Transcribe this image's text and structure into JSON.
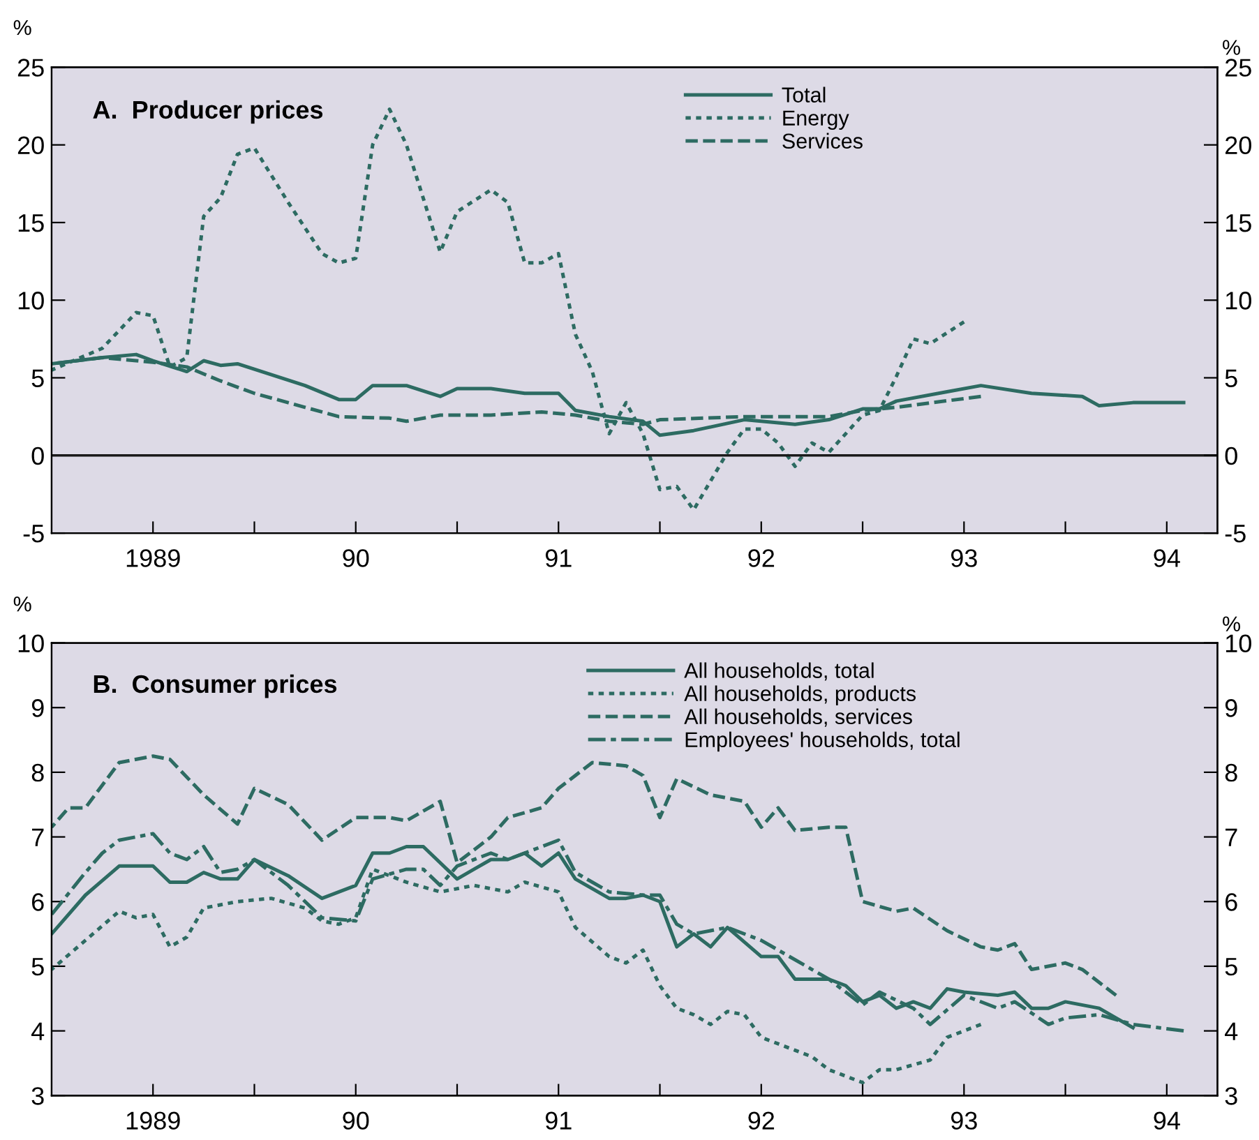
{
  "chart_data": [
    {
      "type": "line",
      "title": "A.  Producer prices",
      "ylabel": "%",
      "y2label": "%",
      "xlim": [
        "1989-01",
        "1994-10"
      ],
      "xticks": [
        {
          "value": "1989-07",
          "label": "1989"
        },
        {
          "value": "1990-01",
          "label": null
        },
        {
          "value": "1990-07",
          "label": "90"
        },
        {
          "value": "1991-01",
          "label": null
        },
        {
          "value": "1991-07",
          "label": "91"
        },
        {
          "value": "1992-01",
          "label": null
        },
        {
          "value": "1992-07",
          "label": "92"
        },
        {
          "value": "1993-01",
          "label": null
        },
        {
          "value": "1993-07",
          "label": "93"
        },
        {
          "value": "1994-01",
          "label": null
        },
        {
          "value": "1994-07",
          "label": "94"
        }
      ],
      "ylim": [
        -5,
        25
      ],
      "yticks": [
        -5,
        0,
        5,
        10,
        15,
        20,
        25
      ],
      "y2lim": [
        -5,
        25
      ],
      "y2ticks": [
        -5,
        0,
        5,
        10,
        15,
        20,
        25
      ],
      "grid": false,
      "legend": "top",
      "marker": "none",
      "ref_lines": [
        {
          "axis": "y",
          "value": 0,
          "color": "#1a1a1a",
          "line_style": "solid"
        }
      ],
      "series": [
        {
          "name": "Total",
          "color": "#2d6b62",
          "line_style": "solid",
          "x": [
            "1989-01",
            "1989-04",
            "1989-06",
            "1989-07",
            "1989-09",
            "1989-10",
            "1989-11",
            "1989-12",
            "1990-04",
            "1990-06",
            "1990-07",
            "1990-08",
            "1990-10",
            "1990-12",
            "1991-01",
            "1991-03",
            "1991-05",
            "1991-07",
            "1991-08",
            "1991-10",
            "1991-12",
            "1992-01",
            "1992-03",
            "1992-06",
            "1992-09",
            "1992-11",
            "1993-01",
            "1993-02",
            "1993-03",
            "1993-06",
            "1993-08",
            "1993-11",
            "1994-02",
            "1994-03",
            "1994-05",
            "1994-08"
          ],
          "values": [
            5.9,
            6.3,
            6.5,
            6.1,
            5.4,
            6.1,
            5.8,
            5.9,
            4.5,
            3.6,
            3.6,
            4.5,
            4.5,
            3.8,
            4.3,
            4.3,
            4.0,
            4.0,
            2.9,
            2.5,
            2.2,
            1.3,
            1.6,
            2.3,
            2.0,
            2.3,
            3.0,
            3.0,
            3.5,
            4.1,
            4.5,
            4.0,
            3.8,
            3.2,
            3.4,
            3.4
          ]
        },
        {
          "name": "Energy",
          "color": "#2d6b62",
          "line_style": "dotted",
          "x": [
            "1989-01",
            "1989-04",
            "1989-06",
            "1989-07",
            "1989-08",
            "1989-09",
            "1989-10",
            "1989-11",
            "1989-12",
            "1990-01",
            "1990-03",
            "1990-05",
            "1990-06",
            "1990-07",
            "1990-08",
            "1990-09",
            "1990-10",
            "1990-12",
            "1991-01",
            "1991-03",
            "1991-04",
            "1991-05",
            "1991-06",
            "1991-07",
            "1991-08",
            "1991-09",
            "1991-10",
            "1991-11",
            "1991-12",
            "1992-01",
            "1992-02",
            "1992-03",
            "1992-05",
            "1992-06",
            "1992-07",
            "1992-08",
            "1992-09",
            "1992-10",
            "1992-11",
            "1993-01",
            "1993-02",
            "1993-03",
            "1993-04",
            "1993-05",
            "1993-07"
          ],
          "values": [
            5.5,
            6.9,
            9.2,
            9.0,
            5.7,
            6.3,
            15.4,
            16.6,
            19.4,
            19.8,
            16.3,
            13.0,
            12.4,
            12.7,
            20.0,
            22.3,
            20.0,
            13.1,
            15.7,
            17.1,
            16.3,
            12.4,
            12.4,
            13.0,
            7.8,
            5.4,
            1.4,
            3.4,
            1.4,
            -2.2,
            -2.0,
            -3.5,
            0.2,
            1.7,
            1.7,
            0.8,
            -0.7,
            0.8,
            0.2,
            2.6,
            2.9,
            5.1,
            7.5,
            7.2,
            8.6
          ]
        },
        {
          "name": "Services",
          "color": "#2d6b62",
          "line_style": "dashed",
          "x": [
            "1989-01",
            "1989-04",
            "1989-06",
            "1989-07",
            "1989-09",
            "1989-11",
            "1990-01",
            "1990-04",
            "1990-06",
            "1990-09",
            "1990-10",
            "1990-12",
            "1991-03",
            "1991-06",
            "1991-08",
            "1991-10",
            "1991-12",
            "1992-01",
            "1992-06",
            "1992-11",
            "1993-01",
            "1993-03",
            "1993-08"
          ],
          "values": [
            5.9,
            6.3,
            6.1,
            6.0,
            5.7,
            4.8,
            4.0,
            3.1,
            2.5,
            2.4,
            2.2,
            2.6,
            2.6,
            2.8,
            2.6,
            2.2,
            2.0,
            2.3,
            2.5,
            2.5,
            2.9,
            3.1,
            3.8
          ]
        }
      ]
    },
    {
      "type": "line",
      "title": "B.  Consumer prices",
      "ylabel": "%",
      "y2label": "%",
      "xlim": [
        "1989-01",
        "1994-10"
      ],
      "xticks": [
        {
          "value": "1989-07",
          "label": "1989"
        },
        {
          "value": "1990-01",
          "label": null
        },
        {
          "value": "1990-07",
          "label": "90"
        },
        {
          "value": "1991-01",
          "label": null
        },
        {
          "value": "1991-07",
          "label": "91"
        },
        {
          "value": "1992-01",
          "label": null
        },
        {
          "value": "1992-07",
          "label": "92"
        },
        {
          "value": "1993-01",
          "label": null
        },
        {
          "value": "1993-07",
          "label": "93"
        },
        {
          "value": "1994-01",
          "label": null
        },
        {
          "value": "1994-07",
          "label": "94"
        }
      ],
      "ylim": [
        3,
        10
      ],
      "yticks": [
        3,
        4,
        5,
        6,
        7,
        8,
        9,
        10
      ],
      "y2lim": [
        3,
        10
      ],
      "y2ticks": [
        3,
        4,
        5,
        6,
        7,
        8,
        9,
        10
      ],
      "grid": false,
      "legend": "top",
      "marker": "none",
      "series": [
        {
          "name": "All households, total",
          "color": "#2d6b62",
          "line_style": "solid",
          "x": [
            "1989-01",
            "1989-03",
            "1989-05",
            "1989-07",
            "1989-08",
            "1989-09",
            "1989-10",
            "1989-11",
            "1989-12",
            "1990-01",
            "1990-03",
            "1990-05",
            "1990-07",
            "1990-08",
            "1990-09",
            "1990-10",
            "1990-11",
            "1991-01",
            "1991-02",
            "1991-03",
            "1991-04",
            "1991-05",
            "1991-06",
            "1991-07",
            "1991-08",
            "1991-10",
            "1991-11",
            "1991-12",
            "1992-01",
            "1992-02",
            "1992-03",
            "1992-04",
            "1992-05",
            "1992-07",
            "1992-08",
            "1992-09",
            "1992-11",
            "1992-12",
            "1993-01",
            "1993-02",
            "1993-03",
            "1993-04",
            "1993-05",
            "1993-06",
            "1993-07",
            "1993-09",
            "1993-10",
            "1993-11",
            "1993-12",
            "1994-01",
            "1994-03",
            "1994-04",
            "1994-05"
          ],
          "values": [
            5.5,
            6.1,
            6.55,
            6.55,
            6.3,
            6.3,
            6.45,
            6.35,
            6.35,
            6.65,
            6.4,
            6.05,
            6.25,
            6.75,
            6.75,
            6.85,
            6.85,
            6.35,
            6.5,
            6.65,
            6.65,
            6.75,
            6.55,
            6.75,
            6.35,
            6.05,
            6.05,
            6.1,
            6.0,
            5.3,
            5.5,
            5.3,
            5.6,
            5.15,
            5.15,
            4.8,
            4.8,
            4.7,
            4.45,
            4.55,
            4.35,
            4.45,
            4.35,
            4.65,
            4.6,
            4.55,
            4.6,
            4.35,
            4.35,
            4.45,
            4.35,
            4.2,
            4.05
          ]
        },
        {
          "name": "All households, products",
          "color": "#2d6b62",
          "line_style": "dotted",
          "x": [
            "1989-01",
            "1989-03",
            "1989-05",
            "1989-06",
            "1989-07",
            "1989-08",
            "1989-09",
            "1989-10",
            "1989-12",
            "1990-02",
            "1990-04",
            "1990-05",
            "1990-06",
            "1990-07",
            "1990-08",
            "1990-10",
            "1990-12",
            "1991-02",
            "1991-04",
            "1991-05",
            "1991-07",
            "1991-08",
            "1991-10",
            "1991-11",
            "1991-12",
            "1992-01",
            "1992-02",
            "1992-03",
            "1992-04",
            "1992-05",
            "1992-06",
            "1992-07",
            "1992-09",
            "1992-10",
            "1992-11",
            "1993-01",
            "1993-02",
            "1993-03",
            "1993-05",
            "1993-06",
            "1993-08"
          ],
          "values": [
            4.95,
            5.4,
            5.85,
            5.75,
            5.8,
            5.3,
            5.45,
            5.9,
            6.0,
            6.05,
            5.9,
            5.7,
            5.65,
            5.75,
            6.5,
            6.3,
            6.15,
            6.25,
            6.15,
            6.3,
            6.15,
            5.6,
            5.15,
            5.05,
            5.25,
            4.7,
            4.35,
            4.25,
            4.1,
            4.3,
            4.25,
            3.9,
            3.7,
            3.6,
            3.4,
            3.2,
            3.4,
            3.4,
            3.55,
            3.9,
            4.1
          ]
        },
        {
          "name": "All households, services",
          "color": "#2d6b62",
          "line_style": "dashed",
          "x": [
            "1989-01",
            "1989-02",
            "1989-03",
            "1989-05",
            "1989-07",
            "1989-08",
            "1989-10",
            "1989-12",
            "1990-01",
            "1990-03",
            "1990-05",
            "1990-07",
            "1990-09",
            "1990-10",
            "1990-12",
            "1991-01",
            "1991-03",
            "1991-04",
            "1991-06",
            "1991-07",
            "1991-09",
            "1991-11",
            "1991-12",
            "1992-01",
            "1992-02",
            "1992-04",
            "1992-06",
            "1992-07",
            "1992-08",
            "1992-09",
            "1992-11",
            "1992-12",
            "1993-01",
            "1993-03",
            "1993-04",
            "1993-06",
            "1993-08",
            "1993-09",
            "1993-10",
            "1993-11",
            "1994-01",
            "1994-02",
            "1994-04"
          ],
          "values": [
            7.15,
            7.45,
            7.45,
            8.15,
            8.25,
            8.2,
            7.65,
            7.2,
            7.75,
            7.5,
            6.95,
            7.3,
            7.3,
            7.25,
            7.55,
            6.6,
            7.0,
            7.3,
            7.45,
            7.75,
            8.15,
            8.1,
            7.95,
            7.3,
            7.9,
            7.65,
            7.55,
            7.15,
            7.45,
            7.1,
            7.15,
            7.15,
            6.0,
            5.85,
            5.9,
            5.55,
            5.3,
            5.25,
            5.35,
            4.95,
            5.05,
            4.95,
            4.55
          ]
        },
        {
          "name": "Employees' households, total",
          "color": "#2d6b62",
          "line_style": "dashdot",
          "x": [
            "1989-01",
            "1989-03",
            "1989-04",
            "1989-05",
            "1989-07",
            "1989-08",
            "1989-09",
            "1989-10",
            "1989-11",
            "1989-12",
            "1990-01",
            "1990-03",
            "1990-05",
            "1990-07",
            "1990-08",
            "1990-10",
            "1990-11",
            "1990-12",
            "1991-01",
            "1991-03",
            "1991-04",
            "1991-06",
            "1991-07",
            "1991-08",
            "1991-10",
            "1991-12",
            "1992-01",
            "1992-02",
            "1992-03",
            "1992-05",
            "1992-07",
            "1992-10",
            "1992-11",
            "1993-01",
            "1993-02",
            "1993-04",
            "1993-05",
            "1993-07",
            "1993-09",
            "1993-10",
            "1993-12",
            "1994-01",
            "1994-03",
            "1994-05",
            "1994-08"
          ],
          "values": [
            5.8,
            6.45,
            6.75,
            6.95,
            7.05,
            6.75,
            6.65,
            6.85,
            6.45,
            6.5,
            6.65,
            6.25,
            5.75,
            5.7,
            6.35,
            6.5,
            6.5,
            6.25,
            6.55,
            6.75,
            6.65,
            6.85,
            6.95,
            6.45,
            6.15,
            6.1,
            6.1,
            5.65,
            5.5,
            5.6,
            5.4,
            4.95,
            4.8,
            4.4,
            4.6,
            4.35,
            4.1,
            4.55,
            4.35,
            4.45,
            4.1,
            4.2,
            4.25,
            4.1,
            4.0
          ]
        }
      ]
    }
  ]
}
